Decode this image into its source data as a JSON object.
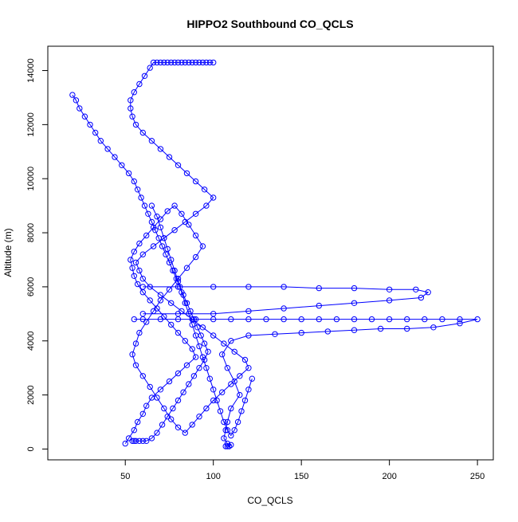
{
  "chart_data": {
    "type": "scatter",
    "title": "HIPPO2 Southbound CO_QCLS",
    "xlabel": "CO_QCLS",
    "ylabel": "Altitude (m)",
    "xlim": [
      6,
      259
    ],
    "ylim": [
      -400,
      14900
    ],
    "x_ticks": [
      "50",
      "100",
      "150",
      "200",
      "250"
    ],
    "y_ticks": [
      "0",
      "2000",
      "4000",
      "6000",
      "8000",
      "10000",
      "12000",
      "14000"
    ],
    "marker": "open-circle",
    "connected": true,
    "grid": false,
    "legend": "none",
    "color": "#0000ff",
    "series": [
      {
        "x": [
          50,
          52,
          55,
          57,
          60,
          62,
          65,
          70,
          75,
          80,
          85,
          90,
          88,
          84,
          80,
          76,
          72,
          68,
          64,
          60,
          57,
          55,
          54,
          53,
          55,
          58,
          62,
          66,
          70,
          74,
          78,
          82,
          86,
          90,
          94,
          90,
          85,
          80,
          75,
          70,
          66,
          62,
          58,
          56,
          54,
          56,
          60,
          64,
          68,
          72,
          76,
          80,
          84,
          88,
          92,
          96,
          100,
          105,
          110,
          115,
          120,
          118,
          112,
          106,
          100,
          94,
          88,
          82,
          76,
          70,
          64,
          60,
          58,
          56,
          60,
          66,
          72,
          78,
          84,
          90,
          96,
          100,
          95,
          90,
          85,
          80,
          75,
          70,
          65,
          60,
          56,
          54,
          53,
          53,
          55,
          58,
          61,
          64,
          66,
          68,
          70,
          72,
          74,
          76,
          78,
          80,
          82,
          84,
          86,
          88,
          90,
          92,
          94,
          96,
          98,
          100
        ],
        "y": [
          200,
          400,
          700,
          1000,
          1300,
          1600,
          1900,
          2200,
          2500,
          2800,
          3100,
          3400,
          3700,
          4000,
          4300,
          4600,
          4900,
          5200,
          5500,
          5800,
          6100,
          6400,
          6700,
          7000,
          7300,
          7600,
          7900,
          8200,
          8500,
          8800,
          9000,
          8700,
          8300,
          7900,
          7500,
          7100,
          6700,
          6300,
          5900,
          5500,
          5100,
          4700,
          4300,
          3900,
          3500,
          3100,
          2700,
          2300,
          1900,
          1500,
          1100,
          800,
          600,
          900,
          1200,
          1500,
          1800,
          2100,
          2400,
          2700,
          3000,
          3300,
          3600,
          3900,
          4200,
          4500,
          4800,
          5100,
          5400,
          5700,
          6000,
          6300,
          6600,
          6900,
          7200,
          7500,
          7800,
          8100,
          8400,
          8700,
          9000,
          9300,
          9600,
          9900,
          10200,
          10500,
          10800,
          11100,
          11400,
          11700,
          12000,
          12300,
          12600,
          12900,
          13200,
          13500,
          13800,
          14100,
          14300,
          14300,
          14300,
          14300,
          14300,
          14300,
          14300,
          14300,
          14300,
          14300,
          14300,
          14300,
          14300,
          14300,
          14300,
          14300,
          14300,
          14300
        ]
      },
      {
        "x": [
          20,
          22,
          24,
          27,
          30,
          33,
          36,
          40,
          44,
          48,
          52,
          55,
          57,
          59,
          61,
          63,
          65,
          67,
          69,
          71,
          73,
          75,
          77,
          79,
          81,
          83,
          85,
          87,
          89,
          91,
          93,
          95,
          97,
          95,
          92,
          89,
          86,
          83,
          80,
          77,
          74,
          71,
          68,
          65,
          62,
          60,
          58,
          56,
          55,
          54
        ],
        "y": [
          13100,
          12900,
          12600,
          12300,
          12000,
          11700,
          11400,
          11100,
          10800,
          10500,
          10200,
          9900,
          9600,
          9300,
          9000,
          8700,
          8400,
          8100,
          7800,
          7500,
          7200,
          6900,
          6600,
          6300,
          6000,
          5700,
          5400,
          5100,
          4800,
          4500,
          4200,
          3900,
          3600,
          3300,
          3000,
          2700,
          2400,
          2100,
          1800,
          1500,
          1200,
          900,
          600,
          400,
          300,
          300,
          300,
          300,
          300,
          300
        ]
      },
      {
        "x": [
          55,
          60,
          70,
          80,
          90,
          100,
          110,
          120,
          130,
          140,
          150,
          160,
          170,
          180,
          190,
          200,
          210,
          220,
          230,
          240,
          250,
          240,
          225,
          210,
          195,
          180,
          165,
          150,
          135,
          120,
          110,
          105,
          108,
          112,
          115,
          110,
          108,
          107,
          106,
          108,
          110,
          109,
          108,
          107
        ],
        "y": [
          4800,
          4800,
          4800,
          4800,
          4800,
          4800,
          4800,
          4800,
          4800,
          4800,
          4800,
          4800,
          4800,
          4800,
          4800,
          4800,
          4800,
          4800,
          4800,
          4800,
          4800,
          4650,
          4500,
          4450,
          4450,
          4400,
          4350,
          4300,
          4250,
          4200,
          4000,
          3500,
          3000,
          2500,
          2000,
          1500,
          1000,
          700,
          400,
          200,
          150,
          100,
          100,
          100
        ]
      },
      {
        "x": [
          60,
          80,
          100,
          120,
          140,
          160,
          180,
          200,
          215,
          222,
          218,
          200,
          180,
          160,
          140,
          120,
          100,
          80,
          60
        ],
        "y": [
          6000,
          6000,
          6000,
          6000,
          6000,
          5950,
          5950,
          5900,
          5900,
          5800,
          5600,
          5500,
          5400,
          5300,
          5200,
          5100,
          5000,
          5000,
          5000
        ]
      },
      {
        "x": [
          65,
          68,
          70,
          72,
          74,
          76,
          78,
          80,
          82,
          84,
          86,
          88,
          90,
          92,
          94,
          96,
          98,
          100,
          102,
          104,
          106,
          108,
          110,
          112,
          114,
          116,
          118,
          120,
          122
        ],
        "y": [
          9000,
          8600,
          8200,
          7800,
          7400,
          7000,
          6600,
          6200,
          5800,
          5400,
          5000,
          4600,
          4200,
          3800,
          3400,
          3000,
          2600,
          2200,
          1800,
          1400,
          1000,
          700,
          500,
          700,
          1000,
          1400,
          1800,
          2200,
          2600
        ]
      }
    ]
  }
}
